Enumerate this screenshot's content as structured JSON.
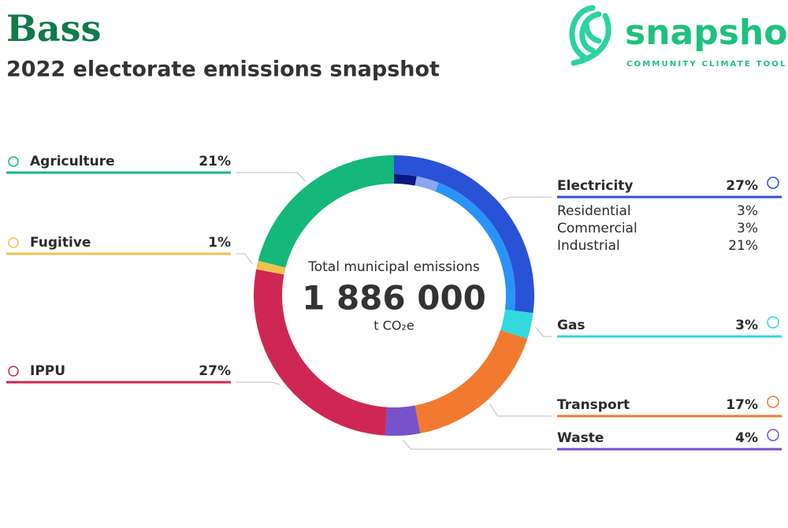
{
  "chart_data": {
    "type": "pie",
    "title": "Bass",
    "subtitle": "2022 electorate emissions snapshot",
    "logo": {
      "name": "snapshot",
      "tagline": "COMMUNITY CLIMATE TOOL"
    },
    "center": {
      "label": "Total municipal emissions",
      "total": "1 886 000",
      "unit": "t CO₂e"
    },
    "categories": [
      "Electricity",
      "Gas",
      "Transport",
      "Waste",
      "IPPU",
      "Fugitive",
      "Agriculture"
    ],
    "values": [
      27,
      3,
      17,
      4,
      27,
      1,
      21
    ],
    "value_labels": [
      "27%",
      "3%",
      "17%",
      "4%",
      "27%",
      "1%",
      "21%"
    ],
    "colors": [
      "#2a52d6",
      "#33d9dc",
      "#f27a30",
      "#7652cc",
      "#cf2753",
      "#f2c14e",
      "#14b87a"
    ],
    "sub_categories": [
      "Residential",
      "Commercial",
      "Industrial"
    ],
    "sub_values": [
      3,
      3,
      21
    ],
    "sub_value_labels": [
      "3%",
      "3%",
      "21%"
    ],
    "sub_colors": [
      "#0b1a80",
      "#8ea6ef",
      "#2a93f7"
    ]
  }
}
